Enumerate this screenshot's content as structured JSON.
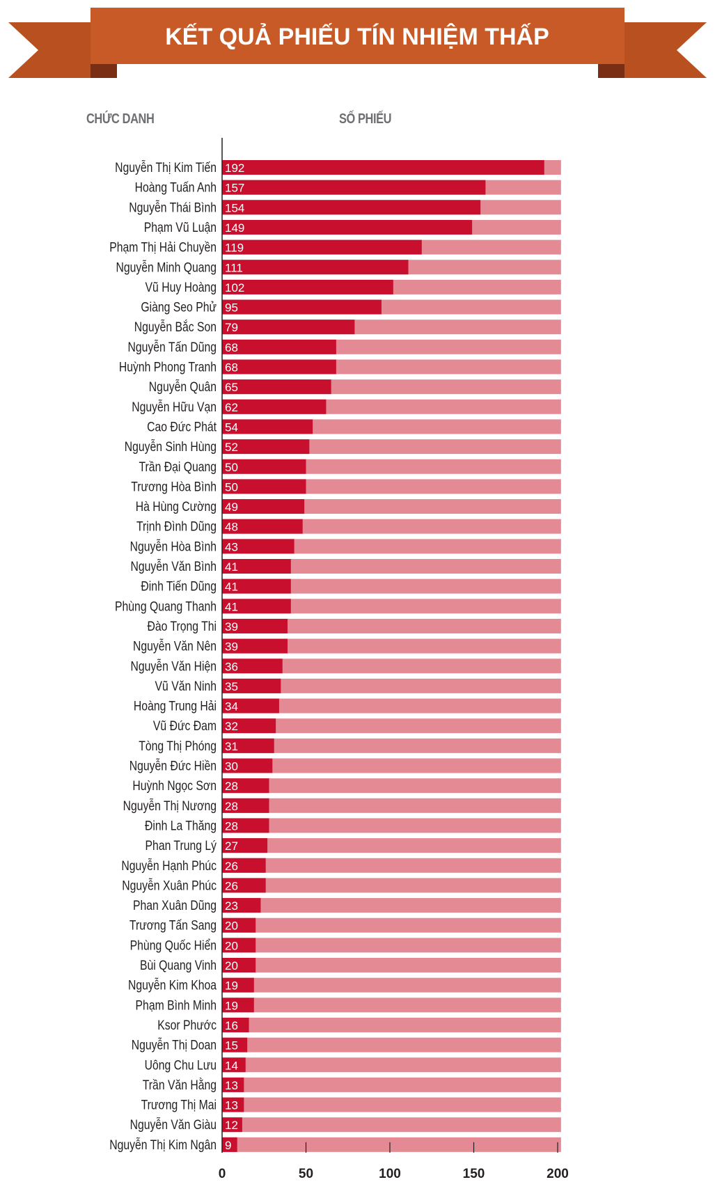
{
  "header": {
    "title": "KẾT QUẢ PHIẾU TÍN NHIỆM THẤP",
    "col_name_label": "CHỨC DANH",
    "col_votes_label": "SỐ PHIẾU"
  },
  "colors": {
    "banner_main": "#c75a27",
    "banner_dark": "#7a2e14",
    "banner_tail": "#b9501f",
    "bar_value": "#c8102e",
    "bar_track": "#e48a94",
    "axis": "#231f20"
  },
  "chart_data": {
    "type": "bar",
    "orientation": "horizontal",
    "title": "KẾT QUẢ PHIẾU TÍN NHIỆM THẤP",
    "xlabel": "SỐ PHIẾU",
    "ylabel": "CHỨC DANH",
    "xlim": [
      0,
      200
    ],
    "track_max": 202,
    "ticks": [
      0,
      50,
      100,
      150,
      200
    ],
    "categories": [
      "Nguyễn Thị Kim Tiến",
      "Hoàng Tuấn Anh",
      "Nguyễn Thái Bình",
      "Phạm Vũ Luận",
      "Phạm Thị Hải Chuyền",
      "Nguyễn Minh Quang",
      "Vũ Huy Hoàng",
      "Giàng Seo Phử",
      "Nguyễn Bắc Son",
      "Nguyễn Tấn Dũng",
      "Huỳnh Phong Tranh",
      "Nguyễn Quân",
      "Nguyễn Hữu Vạn",
      "Cao Đức Phát",
      "Nguyễn Sinh Hùng",
      "Trần Đại Quang",
      "Trương Hòa Bình",
      "Hà Hùng Cường",
      "Trịnh Đình Dũng",
      "Nguyễn Hòa Bình",
      "Nguyễn Văn Bình",
      "Đinh Tiến Dũng",
      "Phùng Quang Thanh",
      "Đào Trọng Thi",
      "Nguyễn Văn Nên",
      "Nguyễn Văn Hiện",
      "Vũ Văn Ninh",
      "Hoàng Trung Hải",
      "Vũ Đức Đam",
      "Tòng Thị Phóng",
      "Nguyễn Đức Hiền",
      "Huỳnh Ngọc Sơn",
      "Nguyễn Thị Nương",
      "Đinh La Thăng",
      "Phan Trung Lý",
      "Nguyễn Hạnh Phúc",
      "Nguyễn Xuân Phúc",
      "Phan Xuân Dũng",
      "Trương Tấn Sang",
      "Phùng Quốc Hiển",
      "Bùi Quang Vinh",
      "Nguyễn Kim Khoa",
      "Phạm Bình Minh",
      "Ksor Phước",
      "Nguyễn Thị Doan",
      "Uông Chu Lưu",
      "Trần Văn Hằng",
      "Trương Thị Mai",
      "Nguyễn Văn Giàu",
      "Nguyễn Thị Kim Ngân"
    ],
    "values": [
      192,
      157,
      154,
      149,
      119,
      111,
      102,
      95,
      79,
      68,
      68,
      65,
      62,
      54,
      52,
      50,
      50,
      49,
      48,
      43,
      41,
      41,
      41,
      39,
      39,
      36,
      35,
      34,
      32,
      31,
      30,
      28,
      28,
      28,
      27,
      26,
      26,
      23,
      20,
      20,
      20,
      19,
      19,
      16,
      15,
      14,
      13,
      13,
      12,
      9
    ]
  }
}
